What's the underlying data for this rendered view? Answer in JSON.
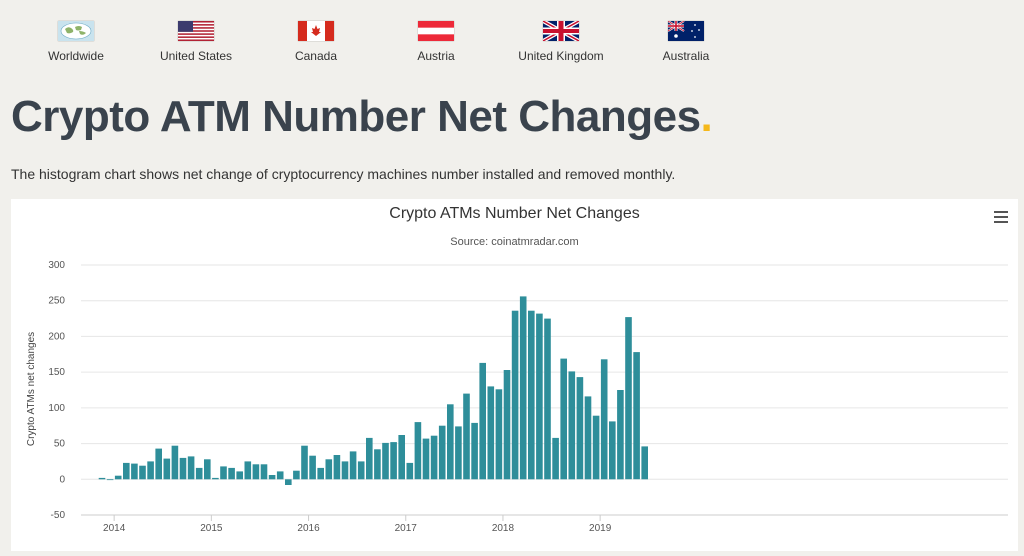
{
  "countries": [
    {
      "label": "Worldwide",
      "active": true,
      "icon": "globe-flag-icon"
    },
    {
      "label": "United States",
      "active": false,
      "icon": "us-flag-icon"
    },
    {
      "label": "Canada",
      "active": false,
      "icon": "canada-flag-icon"
    },
    {
      "label": "Austria",
      "active": false,
      "icon": "austria-flag-icon"
    },
    {
      "label": "United Kingdom",
      "active": false,
      "icon": "uk-flag-icon"
    },
    {
      "label": "Australia",
      "active": false,
      "icon": "australia-flag-icon"
    }
  ],
  "page": {
    "title": "Crypto ATM Number Net Changes",
    "title_dot": ".",
    "description": "The histogram chart shows net change of cryptocurrency machines number installed and removed monthly."
  },
  "colors": {
    "bar": "#2e8e9a",
    "accent": "#f5b81b",
    "title": "#3a434d"
  },
  "chart_data": {
    "type": "bar",
    "title": "Crypto ATMs Number Net Changes",
    "subtitle": "Source: coinatmradar.com",
    "xlabel": "",
    "ylabel": "Crypto ATMs net changes",
    "ylim": [
      -50,
      300
    ],
    "yticks": [
      -50,
      0,
      50,
      100,
      150,
      200,
      250,
      300
    ],
    "grid": true,
    "x_start": "2013-11",
    "x_ticks": [
      {
        "label": "2014",
        "month_index": 2
      },
      {
        "label": "2015",
        "month_index": 14
      },
      {
        "label": "2016",
        "month_index": 26
      },
      {
        "label": "2017",
        "month_index": 38
      },
      {
        "label": "2018",
        "month_index": 50
      },
      {
        "label": "2019",
        "month_index": 62
      }
    ],
    "values": [
      2,
      0,
      5,
      23,
      22,
      19,
      25,
      43,
      29,
      47,
      30,
      32,
      16,
      28,
      2,
      18,
      16,
      11,
      25,
      21,
      21,
      6,
      11,
      -8,
      12,
      47,
      33,
      16,
      28,
      34,
      25,
      39,
      25,
      58,
      42,
      51,
      52,
      62,
      23,
      80,
      57,
      61,
      75,
      105,
      74,
      120,
      79,
      163,
      130,
      126,
      153,
      236,
      256,
      236,
      232,
      225,
      58,
      169,
      151,
      143,
      116,
      89,
      168,
      81,
      125,
      227,
      178,
      46
    ]
  }
}
